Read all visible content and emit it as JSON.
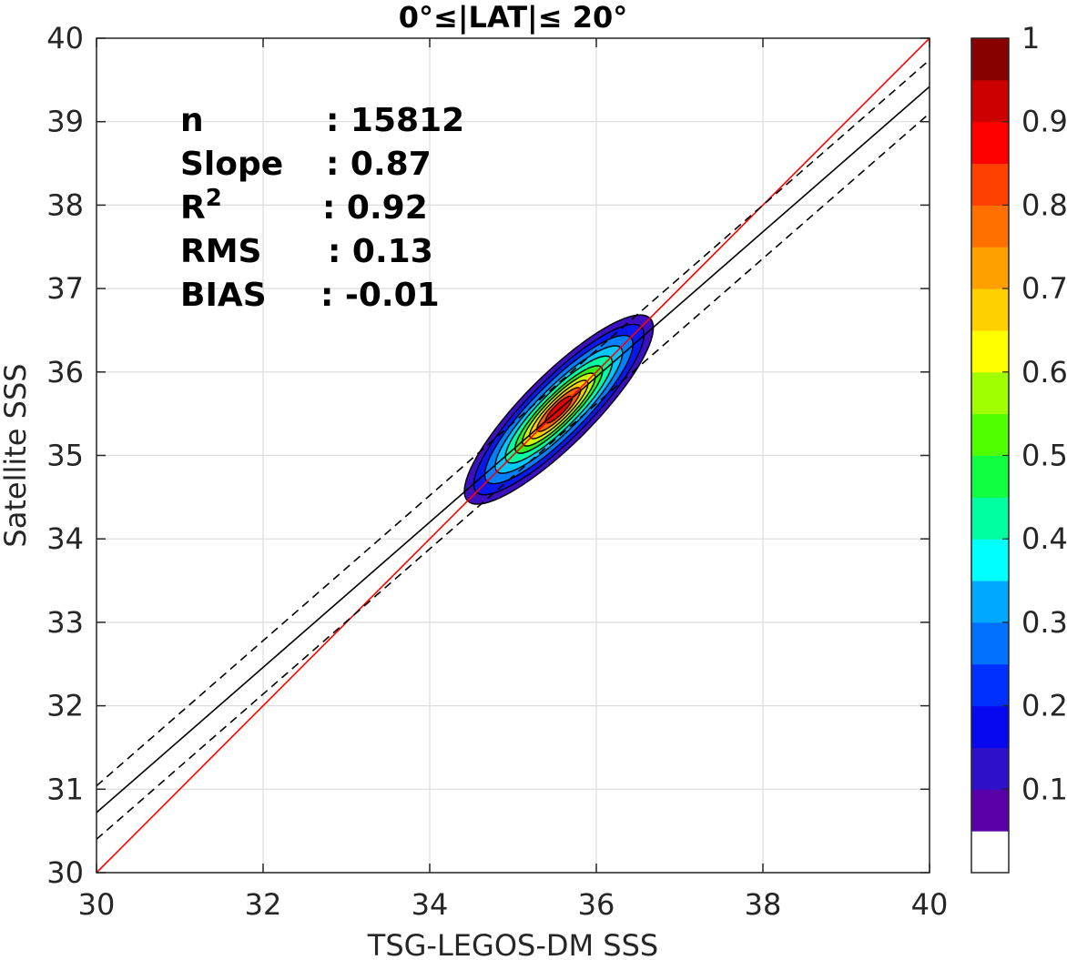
{
  "chart_data": {
    "type": "scatter",
    "subtype": "density-contour",
    "title": "0°≤|LAT|≤ 20°",
    "xlabel": "TSG-LEGOS-DM SSS",
    "ylabel": "Satellite SSS",
    "xlim": [
      30,
      40
    ],
    "ylim": [
      30,
      40
    ],
    "xticks": [
      "30",
      "32",
      "34",
      "36",
      "38",
      "40"
    ],
    "yticks": [
      "30",
      "31",
      "32",
      "33",
      "34",
      "35",
      "36",
      "37",
      "38",
      "39",
      "40"
    ],
    "grid": true,
    "stats": [
      {
        "key": "n",
        "value": ": 15812"
      },
      {
        "key": "Slope",
        "value": ": 0.87"
      },
      {
        "key": "R",
        "sup": "2",
        "value": ": 0.92"
      },
      {
        "key": "RMS",
        "value": ": 0.13"
      },
      {
        "key": "BIAS",
        "value": ": -0.01"
      }
    ],
    "lines": {
      "one_to_one": {
        "color": "#ff0000",
        "x": [
          30,
          40
        ],
        "y": [
          30,
          40
        ]
      },
      "regression": {
        "color": "#000000",
        "x": [
          30,
          40
        ],
        "y": [
          30.72,
          39.42
        ]
      },
      "upper_bound": {
        "color": "#000000",
        "dash": true,
        "x": [
          30,
          40
        ],
        "y": [
          31.04,
          39.74
        ]
      },
      "lower_bound": {
        "color": "#000000",
        "dash": true,
        "x": [
          30,
          40
        ],
        "y": [
          30.4,
          39.1
        ]
      }
    },
    "density": {
      "center": [
        35.55,
        35.55
      ],
      "levels": [
        {
          "level": 0.05,
          "color": "#3a10c0",
          "halfLen": 1.55,
          "halfWid": 0.42
        },
        {
          "level": 0.1,
          "color": "#0a18f0",
          "halfLen": 1.4,
          "halfWid": 0.36
        },
        {
          "level": 0.2,
          "color": "#0080ff",
          "halfLen": 1.22,
          "halfWid": 0.31
        },
        {
          "level": 0.3,
          "color": "#00c8ff",
          "halfLen": 1.05,
          "halfWid": 0.26
        },
        {
          "level": 0.4,
          "color": "#00ffa0",
          "halfLen": 0.88,
          "halfWid": 0.22
        },
        {
          "level": 0.5,
          "color": "#30f020",
          "halfLen": 0.72,
          "halfWid": 0.18
        },
        {
          "level": 0.6,
          "color": "#c8f800",
          "halfLen": 0.6,
          "halfWid": 0.15
        },
        {
          "level": 0.7,
          "color": "#ffd000",
          "halfLen": 0.48,
          "halfWid": 0.12
        },
        {
          "level": 0.8,
          "color": "#ff6000",
          "halfLen": 0.36,
          "halfWid": 0.09
        },
        {
          "level": 0.9,
          "color": "#e80000",
          "halfLen": 0.22,
          "halfWid": 0.06
        }
      ]
    },
    "colorbar": {
      "range": [
        0,
        1
      ],
      "ticks": [
        "0.1",
        "0.2",
        "0.3",
        "0.4",
        "0.5",
        "0.6",
        "0.7",
        "0.8",
        "0.9",
        "1"
      ],
      "colors": [
        "#ffffff",
        "#5a00a8",
        "#2e10c8",
        "#0808f0",
        "#0030ff",
        "#0070ff",
        "#00a8ff",
        "#00ffff",
        "#00ffa0",
        "#10ff40",
        "#50ff00",
        "#a0ff00",
        "#ffff00",
        "#ffd000",
        "#ffa000",
        "#ff7000",
        "#ff4000",
        "#ff0000",
        "#cc0000",
        "#880000"
      ]
    }
  }
}
